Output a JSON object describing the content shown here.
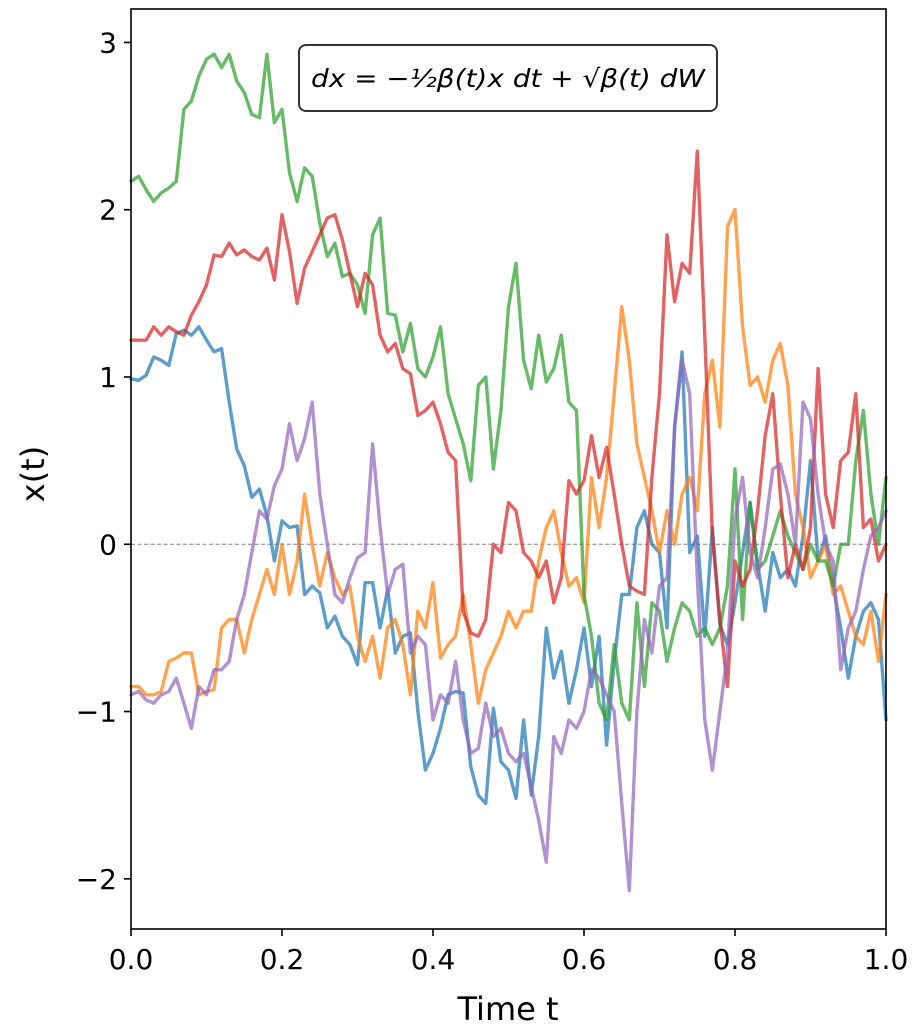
{
  "chart_data": {
    "type": "line",
    "xlabel": "Time t",
    "ylabel": "x(t)",
    "xlim": [
      0.0,
      1.0
    ],
    "ylim": [
      -2.3,
      3.2
    ],
    "xticks": [
      "0.0",
      "0.2",
      "0.4",
      "0.6",
      "0.8",
      "1.0"
    ],
    "yticks": [
      "−2",
      "−1",
      "0",
      "1",
      "2",
      "3"
    ],
    "annotation": "dx = −½β(t)x dt + √β(t) dW",
    "reference_line": {
      "y": 0,
      "style": "dashed",
      "color": "#808080"
    },
    "grid": false,
    "legend": "none",
    "series": [
      {
        "color": "#1f77b4",
        "x": [
          0.0,
          0.01,
          0.02,
          0.03,
          0.04,
          0.05,
          0.06,
          0.07,
          0.08,
          0.09,
          0.1,
          0.11,
          0.12,
          0.13,
          0.14,
          0.15,
          0.16,
          0.17,
          0.18,
          0.19,
          0.2,
          0.21,
          0.22,
          0.23,
          0.24,
          0.25,
          0.26,
          0.27,
          0.28,
          0.29,
          0.3,
          0.31,
          0.32,
          0.33,
          0.34,
          0.35,
          0.36,
          0.37,
          0.38,
          0.39,
          0.4,
          0.41,
          0.42,
          0.43,
          0.44,
          0.45,
          0.46,
          0.47,
          0.48,
          0.49,
          0.5,
          0.51,
          0.52,
          0.53,
          0.54,
          0.55,
          0.56,
          0.57,
          0.58,
          0.59,
          0.6,
          0.61,
          0.62,
          0.63,
          0.64,
          0.65,
          0.66,
          0.67,
          0.68,
          0.69,
          0.7,
          0.71,
          0.72,
          0.73,
          0.74,
          0.75,
          0.76,
          0.77,
          0.78,
          0.79,
          0.8,
          0.81,
          0.82,
          0.83,
          0.84,
          0.85,
          0.86,
          0.87,
          0.88,
          0.89,
          0.9,
          0.91,
          0.92,
          0.93,
          0.94,
          0.95,
          0.96,
          0.97,
          0.98,
          0.99,
          1.0
        ],
        "y": [
          0.99,
          0.98,
          1.01,
          1.12,
          1.1,
          1.07,
          1.26,
          1.28,
          1.25,
          1.3,
          1.22,
          1.15,
          1.17,
          0.85,
          0.57,
          0.47,
          0.28,
          0.33,
          0.17,
          -0.1,
          0.14,
          0.1,
          0.11,
          -0.3,
          -0.25,
          -0.29,
          -0.5,
          -0.43,
          -0.55,
          -0.6,
          -0.72,
          -0.23,
          -0.23,
          -0.5,
          -0.27,
          -0.65,
          -0.55,
          -0.53,
          -1.0,
          -1.35,
          -1.25,
          -1.1,
          -0.9,
          -0.88,
          -0.89,
          -1.33,
          -1.5,
          -1.55,
          -0.98,
          -1.3,
          -1.35,
          -1.52,
          -1.05,
          -1.5,
          -1.15,
          -0.5,
          -0.8,
          -0.64,
          -0.95,
          -0.75,
          -0.5,
          -0.85,
          -0.55,
          -1.2,
          -0.7,
          -0.3,
          -0.3,
          0.1,
          0.2,
          0.0,
          -0.05,
          -0.5,
          0.7,
          1.15,
          -0.05,
          0.05,
          -0.55,
          0.1,
          -0.48,
          -0.6,
          -0.35,
          -0.05,
          0.25,
          -0.12,
          -0.4,
          -0.05,
          -0.2,
          -0.15,
          -0.25,
          0.05,
          0.5,
          -0.1,
          0.05,
          -0.25,
          -0.5,
          -0.8,
          -0.55,
          -0.4,
          -0.35,
          -0.45,
          -1.05
        ]
      },
      {
        "color": "#ff7f0e",
        "x": [
          0.0,
          0.01,
          0.02,
          0.03,
          0.04,
          0.05,
          0.06,
          0.07,
          0.08,
          0.09,
          0.1,
          0.11,
          0.12,
          0.13,
          0.14,
          0.15,
          0.16,
          0.17,
          0.18,
          0.19,
          0.2,
          0.21,
          0.22,
          0.23,
          0.24,
          0.25,
          0.26,
          0.27,
          0.28,
          0.29,
          0.3,
          0.31,
          0.32,
          0.33,
          0.34,
          0.35,
          0.36,
          0.37,
          0.38,
          0.39,
          0.4,
          0.41,
          0.42,
          0.43,
          0.44,
          0.45,
          0.46,
          0.47,
          0.48,
          0.49,
          0.5,
          0.51,
          0.52,
          0.53,
          0.54,
          0.55,
          0.56,
          0.57,
          0.58,
          0.59,
          0.6,
          0.61,
          0.62,
          0.63,
          0.64,
          0.65,
          0.66,
          0.67,
          0.68,
          0.69,
          0.7,
          0.71,
          0.72,
          0.73,
          0.74,
          0.75,
          0.76,
          0.77,
          0.78,
          0.79,
          0.8,
          0.81,
          0.82,
          0.83,
          0.84,
          0.85,
          0.86,
          0.87,
          0.88,
          0.89,
          0.9,
          0.91,
          0.92,
          0.93,
          0.94,
          0.95,
          0.96,
          0.97,
          0.98,
          0.99,
          1.0
        ],
        "y": [
          -0.85,
          -0.85,
          -0.9,
          -0.9,
          -0.88,
          -0.7,
          -0.68,
          -0.65,
          -0.65,
          -0.9,
          -0.88,
          -0.87,
          -0.5,
          -0.45,
          -0.45,
          -0.65,
          -0.45,
          -0.3,
          -0.15,
          -0.3,
          0.0,
          -0.3,
          -0.1,
          0.3,
          0.0,
          -0.25,
          -0.05,
          -0.2,
          -0.3,
          -0.25,
          -0.55,
          -0.7,
          -0.55,
          -0.8,
          -0.5,
          -0.45,
          -0.6,
          -0.9,
          -0.4,
          -0.5,
          -0.23,
          -0.68,
          -0.6,
          -0.55,
          -0.3,
          -0.6,
          -0.95,
          -0.75,
          -0.65,
          -0.55,
          -0.4,
          -0.5,
          -0.4,
          -0.4,
          -0.1,
          0.1,
          0.2,
          -0.05,
          -0.25,
          -0.2,
          -0.35,
          0.4,
          0.1,
          0.4,
          0.9,
          1.42,
          1.1,
          0.6,
          0.4,
          0.2,
          -0.05,
          0.2,
          0.0,
          0.3,
          0.4,
          0.2,
          0.9,
          1.1,
          0.7,
          1.9,
          2.0,
          1.3,
          0.95,
          1.0,
          0.85,
          1.1,
          1.2,
          0.95,
          0.3,
          0.1,
          -0.2,
          -0.1,
          0.0,
          -0.3,
          -0.25,
          -0.4,
          -0.55,
          -0.6,
          -0.4,
          -0.7,
          -0.3
        ]
      },
      {
        "color": "#2ca02c",
        "x": [
          0.0,
          0.01,
          0.02,
          0.03,
          0.04,
          0.05,
          0.06,
          0.07,
          0.08,
          0.09,
          0.1,
          0.11,
          0.12,
          0.13,
          0.14,
          0.15,
          0.16,
          0.17,
          0.18,
          0.19,
          0.2,
          0.21,
          0.22,
          0.23,
          0.24,
          0.25,
          0.26,
          0.27,
          0.28,
          0.29,
          0.3,
          0.31,
          0.32,
          0.33,
          0.34,
          0.35,
          0.36,
          0.37,
          0.38,
          0.39,
          0.4,
          0.41,
          0.42,
          0.43,
          0.44,
          0.45,
          0.46,
          0.47,
          0.48,
          0.49,
          0.5,
          0.51,
          0.52,
          0.53,
          0.54,
          0.55,
          0.56,
          0.57,
          0.58,
          0.59,
          0.6,
          0.61,
          0.62,
          0.63,
          0.64,
          0.65,
          0.66,
          0.67,
          0.68,
          0.69,
          0.7,
          0.71,
          0.72,
          0.73,
          0.74,
          0.75,
          0.76,
          0.77,
          0.78,
          0.79,
          0.8,
          0.81,
          0.82,
          0.83,
          0.84,
          0.85,
          0.86,
          0.87,
          0.88,
          0.89,
          0.9,
          0.91,
          0.92,
          0.93,
          0.94,
          0.95,
          0.96,
          0.97,
          0.98,
          0.99,
          1.0
        ],
        "y": [
          2.17,
          2.2,
          2.12,
          2.05,
          2.1,
          2.13,
          2.17,
          2.6,
          2.65,
          2.8,
          2.9,
          2.93,
          2.85,
          2.93,
          2.77,
          2.7,
          2.57,
          2.55,
          2.93,
          2.52,
          2.6,
          2.22,
          2.05,
          2.25,
          2.2,
          1.92,
          1.72,
          1.8,
          1.6,
          1.62,
          1.55,
          1.38,
          1.85,
          1.95,
          1.38,
          1.37,
          1.15,
          1.32,
          1.05,
          1.0,
          1.12,
          1.3,
          0.9,
          0.75,
          0.6,
          0.38,
          0.95,
          1.0,
          0.45,
          0.8,
          1.42,
          1.68,
          1.1,
          0.93,
          1.25,
          0.97,
          1.05,
          1.25,
          0.85,
          0.8,
          -0.3,
          -0.55,
          -0.95,
          -1.05,
          -0.6,
          -0.95,
          -1.05,
          -0.35,
          -0.85,
          -0.35,
          -0.4,
          -0.7,
          -0.5,
          -0.35,
          -0.4,
          -0.55,
          -0.5,
          -0.6,
          -0.5,
          -0.25,
          0.45,
          -0.45,
          0.25,
          -0.15,
          -0.1,
          0.05,
          0.2,
          0.05,
          -0.05,
          -0.15,
          0.0,
          -0.1,
          -0.1,
          -0.25,
          0.0,
          0.0,
          0.5,
          0.8,
          0.3,
          0.0,
          0.4
        ]
      },
      {
        "color": "#d62728",
        "x": [
          0.0,
          0.01,
          0.02,
          0.03,
          0.04,
          0.05,
          0.06,
          0.07,
          0.08,
          0.09,
          0.1,
          0.11,
          0.12,
          0.13,
          0.14,
          0.15,
          0.16,
          0.17,
          0.18,
          0.19,
          0.2,
          0.21,
          0.22,
          0.23,
          0.24,
          0.25,
          0.26,
          0.27,
          0.28,
          0.29,
          0.3,
          0.31,
          0.32,
          0.33,
          0.34,
          0.35,
          0.36,
          0.37,
          0.38,
          0.39,
          0.4,
          0.41,
          0.42,
          0.43,
          0.44,
          0.45,
          0.46,
          0.47,
          0.48,
          0.49,
          0.5,
          0.51,
          0.52,
          0.53,
          0.54,
          0.55,
          0.56,
          0.57,
          0.58,
          0.59,
          0.6,
          0.61,
          0.62,
          0.63,
          0.64,
          0.65,
          0.66,
          0.67,
          0.68,
          0.69,
          0.7,
          0.71,
          0.72,
          0.73,
          0.74,
          0.75,
          0.76,
          0.77,
          0.78,
          0.79,
          0.8,
          0.81,
          0.82,
          0.83,
          0.84,
          0.85,
          0.86,
          0.87,
          0.88,
          0.89,
          0.9,
          0.91,
          0.92,
          0.93,
          0.94,
          0.95,
          0.96,
          0.97,
          0.98,
          0.99,
          1.0
        ],
        "y": [
          1.22,
          1.22,
          1.22,
          1.3,
          1.25,
          1.3,
          1.27,
          1.25,
          1.37,
          1.45,
          1.55,
          1.73,
          1.72,
          1.8,
          1.73,
          1.76,
          1.72,
          1.7,
          1.77,
          1.58,
          1.97,
          1.75,
          1.44,
          1.65,
          1.75,
          1.85,
          1.95,
          1.97,
          1.82,
          1.62,
          1.42,
          1.62,
          1.55,
          1.25,
          1.15,
          1.2,
          1.05,
          1.02,
          0.77,
          0.8,
          0.85,
          0.72,
          0.55,
          0.5,
          -0.4,
          -0.53,
          -0.55,
          -0.45,
          0.0,
          -0.05,
          0.25,
          0.2,
          -0.05,
          -0.1,
          -0.2,
          -0.1,
          -0.35,
          -0.2,
          0.38,
          0.3,
          0.38,
          0.65,
          0.4,
          0.58,
          0.3,
          0.0,
          -0.25,
          -0.28,
          -0.3,
          0.4,
          0.9,
          1.85,
          1.45,
          1.68,
          1.62,
          2.35,
          1.25,
          0.05,
          -0.45,
          -0.85,
          -0.1,
          -0.25,
          -0.15,
          0.2,
          0.65,
          0.9,
          0.3,
          -0.2,
          0.0,
          -0.15,
          0.1,
          1.05,
          0.3,
          0.1,
          0.5,
          0.55,
          0.9,
          0.1,
          0.15,
          -0.1,
          0.0
        ]
      },
      {
        "color": "#9467bd",
        "x": [
          0.0,
          0.01,
          0.02,
          0.03,
          0.04,
          0.05,
          0.06,
          0.07,
          0.08,
          0.09,
          0.1,
          0.11,
          0.12,
          0.13,
          0.14,
          0.15,
          0.16,
          0.17,
          0.18,
          0.19,
          0.2,
          0.21,
          0.22,
          0.23,
          0.24,
          0.25,
          0.26,
          0.27,
          0.28,
          0.29,
          0.3,
          0.31,
          0.32,
          0.33,
          0.34,
          0.35,
          0.36,
          0.37,
          0.38,
          0.39,
          0.4,
          0.41,
          0.42,
          0.43,
          0.44,
          0.45,
          0.46,
          0.47,
          0.48,
          0.49,
          0.5,
          0.51,
          0.52,
          0.53,
          0.54,
          0.55,
          0.56,
          0.57,
          0.58,
          0.59,
          0.6,
          0.61,
          0.62,
          0.63,
          0.64,
          0.65,
          0.66,
          0.67,
          0.68,
          0.69,
          0.7,
          0.71,
          0.72,
          0.73,
          0.74,
          0.75,
          0.76,
          0.77,
          0.78,
          0.79,
          0.8,
          0.81,
          0.82,
          0.83,
          0.84,
          0.85,
          0.86,
          0.87,
          0.88,
          0.89,
          0.9,
          0.91,
          0.92,
          0.93,
          0.94,
          0.95,
          0.96,
          0.97,
          0.98,
          0.99,
          1.0
        ],
        "y": [
          -0.9,
          -0.88,
          -0.93,
          -0.95,
          -0.9,
          -0.88,
          -0.8,
          -0.95,
          -1.1,
          -0.85,
          -0.9,
          -0.75,
          -0.75,
          -0.7,
          -0.45,
          -0.3,
          -0.05,
          0.2,
          0.15,
          0.35,
          0.45,
          0.72,
          0.5,
          0.63,
          0.85,
          0.3,
          0.0,
          -0.3,
          -0.35,
          -0.2,
          -0.08,
          -0.05,
          0.6,
          0.1,
          -0.3,
          -0.15,
          -0.12,
          -0.65,
          -0.55,
          -0.6,
          -1.05,
          -0.9,
          -0.95,
          -0.7,
          -1.05,
          -1.25,
          -1.22,
          -0.95,
          -1.15,
          -1.1,
          -1.25,
          -1.3,
          -1.25,
          -1.45,
          -1.65,
          -1.9,
          -1.15,
          -1.25,
          -1.05,
          -1.1,
          -1.0,
          -0.75,
          -0.8,
          -0.9,
          -1.0,
          -1.55,
          -2.07,
          -1.0,
          -0.45,
          -0.65,
          -0.25,
          -0.2,
          0.7,
          1.1,
          0.9,
          -0.2,
          -1.05,
          -1.35,
          -1.0,
          -0.65,
          0.15,
          0.4,
          -0.05,
          -0.2,
          0.1,
          0.45,
          0.48,
          0.3,
          0.0,
          0.85,
          0.75,
          0.3,
          0.0,
          -0.1,
          -0.75,
          -0.5,
          -0.4,
          -0.15,
          0.05,
          0.1,
          0.2
        ]
      }
    ]
  }
}
